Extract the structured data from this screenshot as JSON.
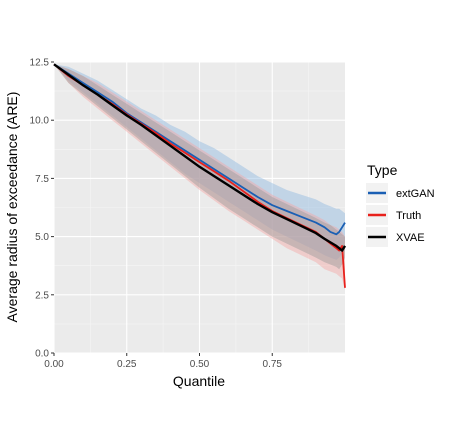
{
  "chart_data": {
    "type": "line",
    "title": "",
    "xlabel": "Quantile",
    "ylabel": "Average radius of exceedance (ARE)",
    "xlim": [
      0,
      1
    ],
    "ylim": [
      0,
      12.5
    ],
    "x_ticks": [
      0.0,
      0.25,
      0.5,
      0.75
    ],
    "x_tick_labels": [
      "0.00",
      "0.25",
      "0.50",
      "0.75"
    ],
    "y_ticks": [
      0.0,
      2.5,
      5.0,
      7.5,
      10.0,
      12.5
    ],
    "y_tick_labels": [
      "0.0",
      "2.5",
      "5.0",
      "7.5",
      "10.0",
      "12.5"
    ],
    "grid": true,
    "legend": {
      "title": "Type",
      "position": "right"
    },
    "series": [
      {
        "name": "extGAN",
        "color": "#1a5fb4",
        "band_color": "#8fb8e0",
        "x": [
          0.0,
          0.05,
          0.1,
          0.15,
          0.2,
          0.25,
          0.3,
          0.35,
          0.4,
          0.45,
          0.5,
          0.55,
          0.6,
          0.65,
          0.7,
          0.75,
          0.8,
          0.85,
          0.9,
          0.93,
          0.95,
          0.97,
          0.98,
          0.99,
          1.0
        ],
        "y": [
          12.4,
          12.0,
          11.6,
          11.2,
          10.8,
          10.3,
          9.9,
          9.5,
          9.1,
          8.7,
          8.3,
          7.9,
          7.5,
          7.1,
          6.7,
          6.35,
          6.1,
          5.85,
          5.6,
          5.4,
          5.2,
          5.1,
          5.2,
          5.4,
          5.6
        ],
        "lower": [
          12.4,
          11.7,
          11.2,
          10.7,
          10.2,
          9.7,
          9.2,
          8.7,
          8.2,
          7.7,
          7.3,
          6.9,
          6.5,
          6.1,
          5.7,
          5.3,
          5.0,
          4.7,
          4.4,
          4.2,
          4.1,
          4.0,
          4.1,
          4.3,
          4.8
        ],
        "upper": [
          12.4,
          12.3,
          12.0,
          11.7,
          11.3,
          10.9,
          10.5,
          10.2,
          9.8,
          9.5,
          9.1,
          8.8,
          8.4,
          8.0,
          7.6,
          7.3,
          7.0,
          6.8,
          6.6,
          6.4,
          6.3,
          6.2,
          6.2,
          6.1,
          6.0
        ]
      },
      {
        "name": "Truth",
        "color": "#e8211c",
        "band_color": "#f4a6a3",
        "x": [
          0.0,
          0.05,
          0.1,
          0.15,
          0.2,
          0.25,
          0.3,
          0.35,
          0.4,
          0.45,
          0.5,
          0.55,
          0.6,
          0.65,
          0.7,
          0.75,
          0.8,
          0.85,
          0.9,
          0.93,
          0.95,
          0.97,
          0.98,
          0.99,
          1.0
        ],
        "y": [
          12.4,
          11.9,
          11.5,
          11.1,
          10.7,
          10.25,
          9.85,
          9.45,
          9.0,
          8.6,
          8.2,
          7.8,
          7.4,
          6.95,
          6.5,
          6.1,
          5.8,
          5.5,
          5.2,
          4.9,
          4.7,
          4.5,
          4.4,
          4.6,
          2.8
        ],
        "lower": [
          12.4,
          11.6,
          11.0,
          10.5,
          10.0,
          9.5,
          9.0,
          8.5,
          8.0,
          7.5,
          7.0,
          6.55,
          6.1,
          5.7,
          5.3,
          4.9,
          4.5,
          4.2,
          3.9,
          3.6,
          3.5,
          3.4,
          3.3,
          3.2,
          2.7
        ],
        "upper": [
          12.4,
          12.2,
          11.9,
          11.6,
          11.2,
          10.8,
          10.4,
          10.0,
          9.6,
          9.2,
          8.8,
          8.4,
          8.0,
          7.6,
          7.2,
          6.8,
          6.5,
          6.2,
          5.9,
          5.7,
          5.5,
          5.4,
          5.3,
          5.2,
          5.0
        ]
      },
      {
        "name": "XVAE",
        "color": "#000000",
        "band_color": "#9a9a9a",
        "x": [
          0.0,
          0.05,
          0.1,
          0.15,
          0.2,
          0.25,
          0.3,
          0.35,
          0.4,
          0.45,
          0.5,
          0.55,
          0.6,
          0.65,
          0.7,
          0.75,
          0.8,
          0.85,
          0.9,
          0.93,
          0.95,
          0.97,
          0.98,
          0.99,
          1.0
        ],
        "y": [
          12.4,
          11.95,
          11.5,
          11.1,
          10.65,
          10.2,
          9.8,
          9.35,
          8.9,
          8.45,
          8.0,
          7.6,
          7.2,
          6.8,
          6.4,
          6.05,
          5.75,
          5.45,
          5.15,
          4.9,
          4.75,
          4.6,
          4.5,
          4.4,
          4.6
        ],
        "lower": [
          12.4,
          11.6,
          11.1,
          10.6,
          10.1,
          9.6,
          9.1,
          8.6,
          8.1,
          7.6,
          7.1,
          6.65,
          6.2,
          5.8,
          5.4,
          5.0,
          4.7,
          4.4,
          4.1,
          3.9,
          3.8,
          3.7,
          3.6,
          3.8,
          4.1
        ],
        "upper": [
          12.4,
          12.2,
          11.9,
          11.5,
          11.1,
          10.7,
          10.3,
          9.9,
          9.5,
          9.1,
          8.7,
          8.3,
          7.9,
          7.5,
          7.1,
          6.7,
          6.4,
          6.1,
          5.8,
          5.6,
          5.5,
          5.3,
          5.2,
          5.1,
          5.0
        ]
      }
    ]
  }
}
